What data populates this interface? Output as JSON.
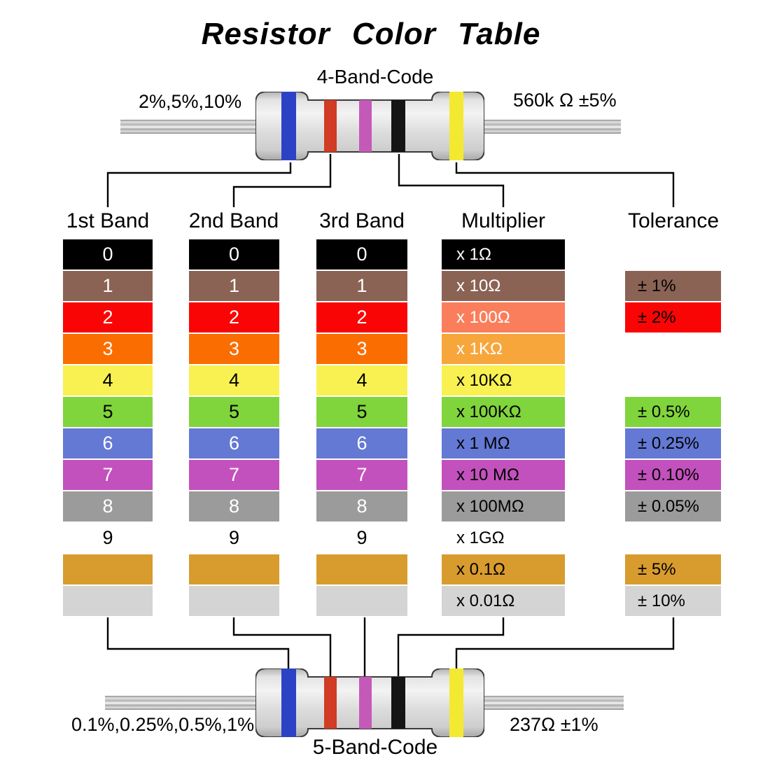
{
  "title": "Resistor Color Table",
  "top_resistor": {
    "title": "4-Band-Code",
    "left_label": "2%,5%,10%",
    "right_label": "560k Ω  ±5%",
    "bands": [
      "blue",
      "red",
      "violet",
      "black",
      "yellow"
    ]
  },
  "bottom_resistor": {
    "title": "5-Band-Code",
    "left_label": "0.1%,0.25%,0.5%,1%",
    "right_label": "237Ω  ±1%",
    "bands": [
      "blue",
      "red",
      "violet",
      "black",
      "yellow"
    ]
  },
  "colors": {
    "bands": {
      "blue": "#2c42c5",
      "red": "#d03c24",
      "violet": "#c35ab8",
      "black": "#151515",
      "yellow": "#f4e931"
    }
  },
  "table": {
    "headers": [
      "1st Band",
      "2nd Band",
      "3rd Band",
      "Multiplier",
      "Tolerance"
    ],
    "rows": [
      {
        "name": "black",
        "digit": "0",
        "digit_bg": "#000000",
        "digit_fg": "#ffffff",
        "mult_label": "x 1Ω",
        "mult_bg": "#000000",
        "mult_fg": "#ffffff",
        "tol_label": null,
        "tol_bg": null
      },
      {
        "name": "brown",
        "digit": "1",
        "digit_bg": "#8a6355",
        "digit_fg": "#ffffff",
        "mult_label": "x 10Ω",
        "mult_bg": "#8a6355",
        "mult_fg": "#ffffff",
        "tol_label": "± 1%",
        "tol_bg": "#8a6355"
      },
      {
        "name": "red",
        "digit": "2",
        "digit_bg": "#fa0505",
        "digit_fg": "#ffffff",
        "mult_label": "x 100Ω",
        "mult_bg": "#fa7e5c",
        "mult_fg": "#ffffff",
        "tol_label": "± 2%",
        "tol_bg": "#fa0505"
      },
      {
        "name": "orange",
        "digit": "3",
        "digit_bg": "#fa6d01",
        "digit_fg": "#ffffff",
        "mult_label": "x 1KΩ",
        "mult_bg": "#f7a63c",
        "mult_fg": "#ffffff",
        "tol_label": null,
        "tol_bg": null
      },
      {
        "name": "yellow",
        "digit": "4",
        "digit_bg": "#f8f151",
        "digit_fg": "#000000",
        "mult_label": "x 10KΩ",
        "mult_bg": "#f8f151",
        "mult_fg": "#000000",
        "tol_label": null,
        "tol_bg": null
      },
      {
        "name": "green",
        "digit": "5",
        "digit_bg": "#80d43c",
        "digit_fg": "#000000",
        "mult_label": "x 100KΩ",
        "mult_bg": "#80d43c",
        "mult_fg": "#000000",
        "tol_label": "± 0.5%",
        "tol_bg": "#80d43c"
      },
      {
        "name": "blue",
        "digit": "6",
        "digit_bg": "#6379d4",
        "digit_fg": "#ffffff",
        "mult_label": "x 1 MΩ",
        "mult_bg": "#6379d4",
        "mult_fg": "#000000",
        "tol_label": "± 0.25%",
        "tol_bg": "#6379d4"
      },
      {
        "name": "violet",
        "digit": "7",
        "digit_bg": "#c351bd",
        "digit_fg": "#ffffff",
        "mult_label": "x 10 MΩ",
        "mult_bg": "#c351bd",
        "mult_fg": "#000000",
        "tol_label": "± 0.10%",
        "tol_bg": "#c351bd"
      },
      {
        "name": "gray",
        "digit": "8",
        "digit_bg": "#9b9b9b",
        "digit_fg": "#ffffff",
        "mult_label": "x 100MΩ",
        "mult_bg": "#9b9b9b",
        "mult_fg": "#000000",
        "tol_label": "± 0.05%",
        "tol_bg": "#9b9b9b"
      },
      {
        "name": "white",
        "digit": "9",
        "digit_bg": "#ffffff",
        "digit_fg": "#000000",
        "mult_label": "x 1GΩ",
        "mult_bg": "#ffffff",
        "mult_fg": "#000000",
        "tol_label": null,
        "tol_bg": null
      },
      {
        "name": "gold",
        "digit": "",
        "digit_bg": "#d89b2d",
        "digit_fg": "#000000",
        "mult_label": "x 0.1Ω",
        "mult_bg": "#d89b2d",
        "mult_fg": "#000000",
        "tol_label": "± 5%",
        "tol_bg": "#d89b2d"
      },
      {
        "name": "silver",
        "digit": "",
        "digit_bg": "#d4d4d4",
        "digit_fg": "#000000",
        "mult_label": "x 0.01Ω",
        "mult_bg": "#d4d4d4",
        "mult_fg": "#000000",
        "tol_label": "± 10%",
        "tol_bg": "#d4d4d4"
      }
    ]
  }
}
